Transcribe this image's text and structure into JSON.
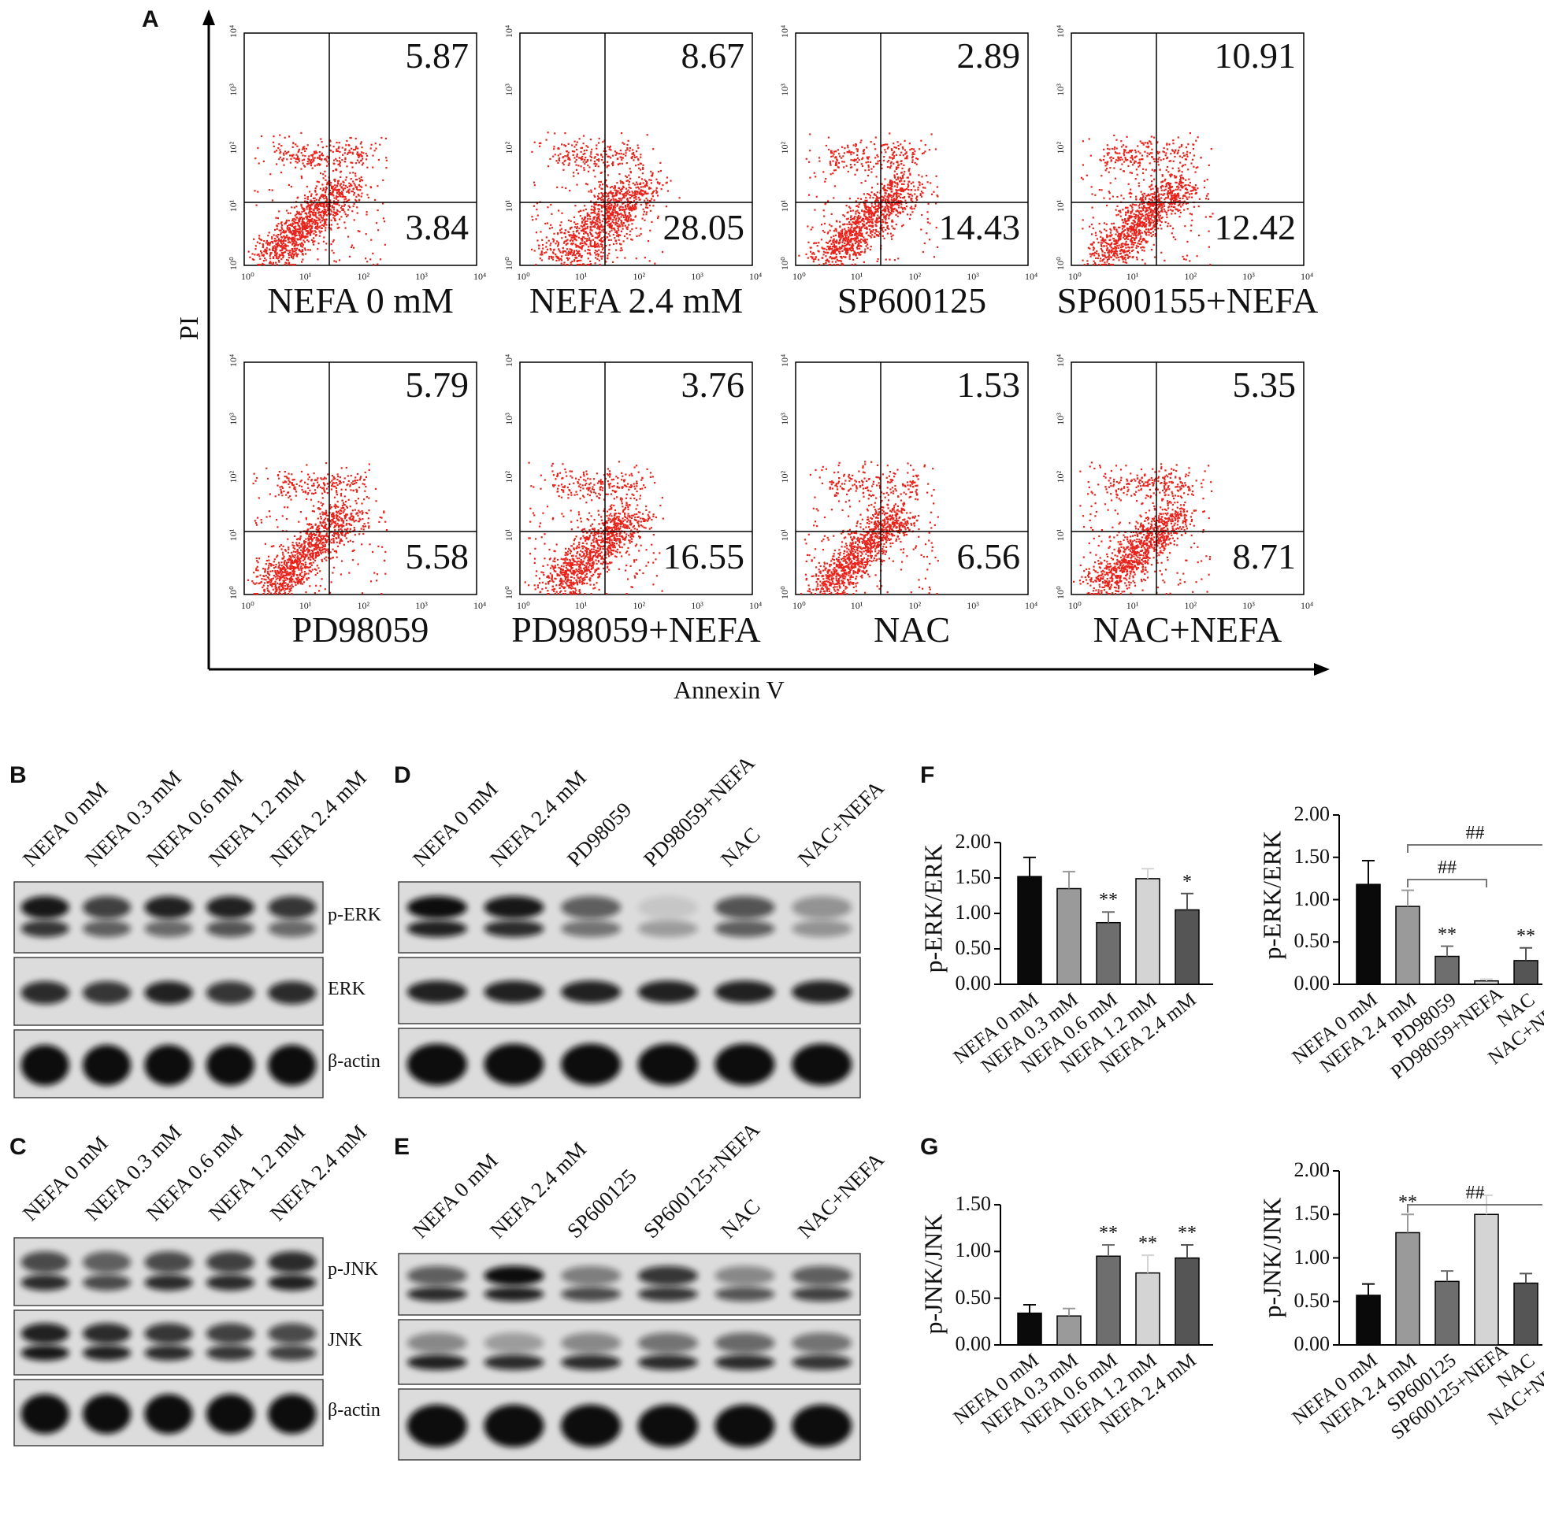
{
  "panels": {
    "A": "A",
    "B": "B",
    "C": "C",
    "D": "D",
    "E": "E",
    "F": "F",
    "G": "G"
  },
  "flow": {
    "y_axis_label": "PI",
    "x_axis_label": "Annexin V",
    "tick_labels": [
      "10⁰",
      "10¹",
      "10²",
      "10³",
      "10⁴"
    ],
    "plots": [
      {
        "label": "NEFA 0 mM",
        "upper_right": "5.87",
        "lower_right": "3.84"
      },
      {
        "label": "NEFA 2.4 mM",
        "upper_right": "8.67",
        "lower_right": "28.05"
      },
      {
        "label": "SP600125",
        "upper_right": "2.89",
        "lower_right": "14.43"
      },
      {
        "label": "SP600155+NEFA",
        "upper_right": "10.91",
        "lower_right": "12.42"
      },
      {
        "label": "PD98059",
        "upper_right": "5.79",
        "lower_right": "5.58"
      },
      {
        "label": "PD98059+NEFA",
        "upper_right": "3.76",
        "lower_right": "16.55"
      },
      {
        "label": "NAC",
        "upper_right": "1.53",
        "lower_right": "6.56"
      },
      {
        "label": "NAC+NEFA",
        "upper_right": "5.35",
        "lower_right": "8.71"
      }
    ],
    "dot_color": "#e8231b"
  },
  "blots": {
    "B": {
      "lanes": [
        "NEFA 0 mM",
        "NEFA 0.3 mM",
        "NEFA 0.6 mM",
        "NEFA 1.2 mM",
        "NEFA 2.4 mM"
      ],
      "rows": [
        "p-ERK",
        "ERK",
        "β-actin"
      ]
    },
    "C": {
      "lanes": [
        "NEFA 0 mM",
        "NEFA 0.3 mM",
        "NEFA 0.6 mM",
        "NEFA 1.2 mM",
        "NEFA 2.4 mM"
      ],
      "rows": [
        "p-JNK",
        "JNK",
        "β-actin"
      ]
    },
    "D": {
      "lanes": [
        "NEFA 0 mM",
        "NEFA 2.4 mM",
        "PD98059",
        "PD98059+NEFA",
        "NAC",
        "NAC+NEFA"
      ],
      "rows": [
        "p-ERK",
        "ERK",
        "β-actin"
      ]
    },
    "E": {
      "lanes": [
        "NEFA 0 mM",
        "NEFA 2.4 mM",
        "SP600125",
        "SP600125+NEFA",
        "NAC",
        "NAC+NEFA"
      ],
      "rows": [
        "p-JNK",
        "JNK",
        "β-actin"
      ]
    }
  },
  "chart_data": [
    {
      "type": "bar",
      "panel": "F",
      "ylabel": "p-ERK/ERK",
      "ylim": [
        0,
        2
      ],
      "yticks": [
        "0.00",
        "0.50",
        "1.00",
        "1.50",
        "2.00"
      ],
      "categories": [
        "NEFA 0 mM",
        "NEFA 0.3 mM",
        "NEFA 0.6 mM",
        "NEFA 1.2 mM",
        "NEFA 2.4 mM"
      ],
      "values": [
        1.52,
        1.35,
        0.87,
        1.49,
        1.05
      ],
      "errors": [
        0.27,
        0.24,
        0.15,
        0.14,
        0.23
      ],
      "colors": [
        "#0a0a0a",
        "#9a9a9a",
        "#6e6e6e",
        "#d4d4d4",
        "#555555"
      ],
      "annotations": [
        "",
        "",
        "**",
        "",
        "*"
      ]
    },
    {
      "type": "bar",
      "panel": "F",
      "ylabel": "p-ERK/ERK",
      "ylim": [
        0,
        2
      ],
      "yticks": [
        "0.00",
        "0.50",
        "1.00",
        "1.50",
        "2.00"
      ],
      "categories": [
        "NEFA 0 mM",
        "NEFA 2.4 mM",
        "PD98059",
        "PD98059+NEFA",
        "NAC",
        "NAC+NEFA"
      ],
      "values": [
        1.18,
        0.92,
        0.33,
        0.04,
        0.28,
        null
      ],
      "errors": [
        0.28,
        0.19,
        0.12,
        0.02,
        0.15,
        null
      ],
      "colors": [
        "#0a0a0a",
        "#9a9a9a",
        "#6e6e6e",
        "#d4d4d4",
        "#555555",
        "#555555"
      ],
      "annotations": [
        "",
        "",
        "**",
        "",
        "**",
        ""
      ],
      "brackets": [
        "##",
        "##"
      ]
    },
    {
      "type": "bar",
      "panel": "G",
      "ylabel": "p-JNK/JNK",
      "ylim": [
        0,
        1.5
      ],
      "yticks": [
        "0.00",
        "0.50",
        "1.00",
        "1.50"
      ],
      "categories": [
        "NEFA 0 mM",
        "NEFA 0.3 mM",
        "NEFA 0.6 mM",
        "NEFA 1.2 mM",
        "NEFA 2.4 mM"
      ],
      "values": [
        0.34,
        0.31,
        0.95,
        0.77,
        0.93
      ],
      "errors": [
        0.09,
        0.08,
        0.12,
        0.19,
        0.14
      ],
      "colors": [
        "#0a0a0a",
        "#9a9a9a",
        "#6e6e6e",
        "#d4d4d4",
        "#555555"
      ],
      "annotations": [
        "",
        "",
        "**",
        "**",
        "**"
      ]
    },
    {
      "type": "bar",
      "panel": "G",
      "ylabel": "p-JNK/JNK",
      "ylim": [
        0,
        2
      ],
      "yticks": [
        "0.00",
        "0.50",
        "1.00",
        "1.50",
        "2.00"
      ],
      "categories": [
        "NEFA 0 mM",
        "NEFA 2.4 mM",
        "SP600125",
        "SP600125+NEFA",
        "NAC",
        "NAC+NEFA"
      ],
      "values": [
        0.57,
        1.29,
        0.73,
        1.5,
        0.71,
        null
      ],
      "errors": [
        0.13,
        0.21,
        0.12,
        0.22,
        0.11,
        null
      ],
      "colors": [
        "#0a0a0a",
        "#9a9a9a",
        "#6e6e6e",
        "#d4d4d4",
        "#555555",
        "#555555"
      ],
      "annotations": [
        "",
        "**",
        "",
        "",
        "",
        ""
      ],
      "brackets": [
        "##"
      ]
    }
  ]
}
